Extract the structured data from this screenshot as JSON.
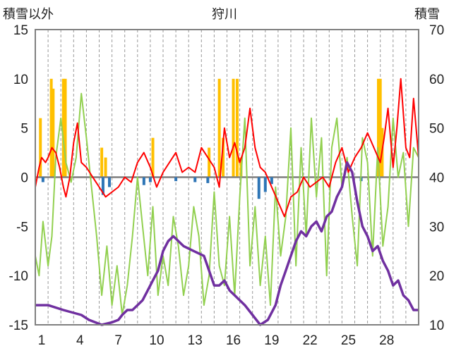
{
  "chart_data": {
    "type": "line",
    "title": "狩川",
    "left_axis_label": "積雪以外",
    "right_axis_label": "積雪",
    "ylim_left": [
      -15,
      15
    ],
    "ylim_right": [
      10,
      70
    ],
    "yticks_left": [
      -15,
      -10,
      -5,
      0,
      5,
      10,
      15
    ],
    "yticks_right": [
      10,
      20,
      30,
      40,
      50,
      60,
      70
    ],
    "xlim": [
      0,
      30
    ],
    "xticks": [
      1,
      4,
      7,
      10,
      13,
      16,
      19,
      22,
      25,
      28
    ],
    "colors": {
      "precipitation": "#ffc000",
      "negative_bars": "#2e75b6",
      "temperature": "#ff0000",
      "green_series": "#92d050",
      "snow_depth": "#7030a0",
      "zero_line": "#7f7f7f",
      "frame": "#808080"
    },
    "series": [
      {
        "key": "precipitation",
        "type": "bar",
        "axis": "left",
        "x": [
          0.4,
          1.25,
          1.4,
          2.2,
          2.35,
          5.2,
          5.5,
          9.2,
          13.6,
          14.4,
          14.7,
          15.5,
          15.8,
          16.1,
          26.85,
          27.0,
          27.15
        ],
        "values": [
          6,
          10,
          9,
          10,
          10,
          3,
          2,
          4,
          3,
          10,
          4,
          10,
          10,
          2,
          10,
          10,
          5
        ]
      },
      {
        "key": "negative_bars",
        "type": "bar",
        "axis": "left",
        "x": [
          0.6,
          5.3,
          5.8,
          8.5,
          9.0,
          11.0,
          12.5,
          13.5,
          17.5,
          18.0,
          18.5,
          25.5
        ],
        "values": [
          -0.5,
          -1.8,
          -1.0,
          -0.8,
          -0.5,
          -0.4,
          -0.5,
          -0.6,
          -2.2,
          -1.5,
          -0.7,
          -0.4
        ]
      },
      {
        "key": "temperature",
        "type": "line",
        "axis": "left",
        "x": [
          0,
          0.3,
          0.5,
          0.8,
          1.0,
          1.3,
          1.6,
          1.9,
          2.2,
          2.4,
          2.7,
          3.0,
          3.3,
          3.6,
          4.0,
          4.5,
          5.0,
          5.5,
          6.0,
          6.5,
          7.0,
          7.5,
          8.0,
          8.5,
          9.0,
          9.5,
          10.0,
          10.5,
          11.0,
          11.5,
          12.0,
          12.5,
          13.0,
          13.5,
          14.0,
          14.4,
          14.8,
          15.2,
          15.6,
          16.0,
          16.4,
          16.8,
          17.2,
          17.6,
          18.0,
          18.5,
          19.0,
          19.5,
          20.0,
          20.5,
          21.0,
          21.5,
          22.0,
          22.5,
          23.0,
          23.5,
          24.0,
          24.5,
          25.0,
          25.5,
          26.0,
          26.5,
          27.0,
          27.3,
          27.6,
          28.0,
          28.3,
          28.6,
          29.0,
          29.3,
          29.6,
          30.0
        ],
        "values": [
          -1,
          1,
          2,
          1.5,
          2,
          3,
          2.5,
          1,
          -1,
          -2,
          0,
          3.5,
          5.5,
          1.5,
          1,
          0,
          -1,
          -2,
          -1.5,
          -1,
          0,
          -0.5,
          1.5,
          2.5,
          1,
          -1,
          0.5,
          1.5,
          2.5,
          0.5,
          1,
          0.5,
          3,
          2,
          1,
          -1,
          5,
          2,
          3.5,
          1.5,
          3,
          7,
          3,
          1,
          0.5,
          -1,
          -2.5,
          -4,
          -2,
          -1.5,
          0,
          -1,
          -0.5,
          0,
          -1,
          1.5,
          3,
          0.5,
          2,
          3,
          4.5,
          3,
          1.5,
          4,
          7,
          1,
          5,
          10,
          3,
          2,
          8,
          2
        ]
      },
      {
        "key": "green_series",
        "type": "line",
        "axis": "left",
        "x": [
          0,
          0.3,
          0.6,
          1.0,
          1.3,
          1.6,
          2.0,
          2.4,
          2.8,
          3.2,
          3.6,
          4.0,
          4.4,
          4.8,
          5.2,
          5.6,
          6.0,
          6.4,
          6.8,
          7.2,
          7.6,
          8.0,
          8.4,
          8.8,
          9.2,
          9.6,
          10.0,
          10.4,
          10.8,
          11.2,
          11.6,
          12.0,
          12.4,
          12.8,
          13.2,
          13.6,
          14.0,
          14.4,
          14.8,
          15.2,
          15.6,
          16.0,
          16.4,
          16.8,
          17.2,
          17.6,
          18.0,
          18.4,
          18.8,
          19.2,
          19.6,
          20.0,
          20.4,
          20.8,
          21.2,
          21.6,
          22.0,
          22.4,
          22.8,
          23.2,
          23.6,
          24.0,
          24.4,
          24.8,
          25.2,
          25.6,
          26.0,
          26.4,
          26.8,
          27.2,
          27.6,
          28.0,
          28.4,
          28.8,
          29.2,
          29.6,
          30.0
        ],
        "values": [
          -8,
          -10,
          -4.5,
          -9,
          -6,
          2,
          6,
          1.5,
          -0.5,
          2,
          8.5,
          4,
          -1,
          -6,
          -12,
          -7,
          -13,
          -9,
          -14,
          -11,
          -6,
          0,
          -5,
          -10,
          -3,
          -12,
          -8,
          -11,
          -4,
          -7,
          -12,
          -9,
          -3,
          -6,
          -13,
          -10,
          -1.5,
          -9,
          -11,
          -4,
          -12,
          -2,
          6,
          -9,
          -3,
          -11,
          -6,
          -13,
          -1,
          -8,
          -4,
          5,
          -9,
          3,
          -6,
          6,
          -2,
          4,
          -10,
          3,
          6,
          -1,
          2,
          -4,
          -9,
          4,
          1.5,
          -8,
          3,
          -7,
          -3,
          6,
          0,
          2.5,
          -5,
          3,
          2
        ]
      },
      {
        "key": "snow_depth",
        "type": "line",
        "axis": "right",
        "x": [
          0,
          1.0,
          2.2,
          3.6,
          4.2,
          5.2,
          6.0,
          6.5,
          6.8,
          7.2,
          7.6,
          8.0,
          8.4,
          8.8,
          9.2,
          9.6,
          10.0,
          10.4,
          10.8,
          11.6,
          12.4,
          13.2,
          13.6,
          14.0,
          14.4,
          14.8,
          15.2,
          15.6,
          16.0,
          16.4,
          17.0,
          17.6,
          18.2,
          18.8,
          19.2,
          19.6,
          20.0,
          20.4,
          20.8,
          21.2,
          21.6,
          22.0,
          22.4,
          22.8,
          23.2,
          23.6,
          24.0,
          24.4,
          24.8,
          25.2,
          25.6,
          26.0,
          26.4,
          26.8,
          27.2,
          27.6,
          28.0,
          28.4,
          28.8,
          29.2,
          29.6,
          30.0
        ],
        "values": [
          14,
          14,
          13,
          12,
          11,
          10,
          10.5,
          11,
          12,
          13,
          13,
          14,
          15,
          17,
          19,
          21,
          25,
          27,
          28,
          26,
          25,
          24,
          21,
          18,
          18,
          19,
          17,
          16,
          15,
          14,
          12,
          10,
          11,
          14,
          18,
          21,
          24,
          27,
          29,
          28,
          30,
          31,
          29,
          32,
          33,
          36,
          38,
          43,
          41,
          35,
          30,
          28,
          25,
          26,
          23,
          21,
          18,
          19,
          16,
          15,
          13,
          13
        ]
      }
    ]
  }
}
